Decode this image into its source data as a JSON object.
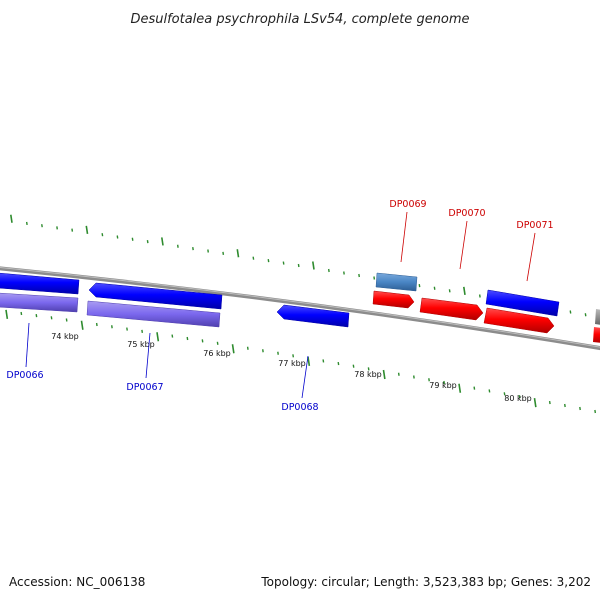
{
  "title": "Desulfotalea psychrophila LSv54, complete genome",
  "footer": {
    "accession": "Accession: NC_006138",
    "summary": "Topology: circular; Length: 3,523,383 bp; Genes: 3,202"
  },
  "colors": {
    "backbone": "#8c8c8c",
    "tick": "#2e8b2e",
    "forward_gene": "#ff0000",
    "reverse_gene": "#0000ff",
    "forward_label": "#cc0000",
    "reverse_label": "#0000cc",
    "rna_like": "#4a86c5",
    "cds_light": "#7b68ee",
    "grey_feature": "#888888"
  },
  "scale_labels": [
    "74 kbp",
    "75 kbp",
    "76 kbp",
    "77 kbp",
    "78 kbp",
    "79 kbp",
    "80 kbp"
  ],
  "gene_labels": [
    {
      "text": "DP0066",
      "strand": "reverse"
    },
    {
      "text": "DP0067",
      "strand": "reverse"
    },
    {
      "text": "DP0068",
      "strand": "reverse"
    },
    {
      "text": "DP0069",
      "strand": "forward"
    },
    {
      "text": "DP0070",
      "strand": "forward"
    },
    {
      "text": "DP0071",
      "strand": "forward"
    }
  ]
}
